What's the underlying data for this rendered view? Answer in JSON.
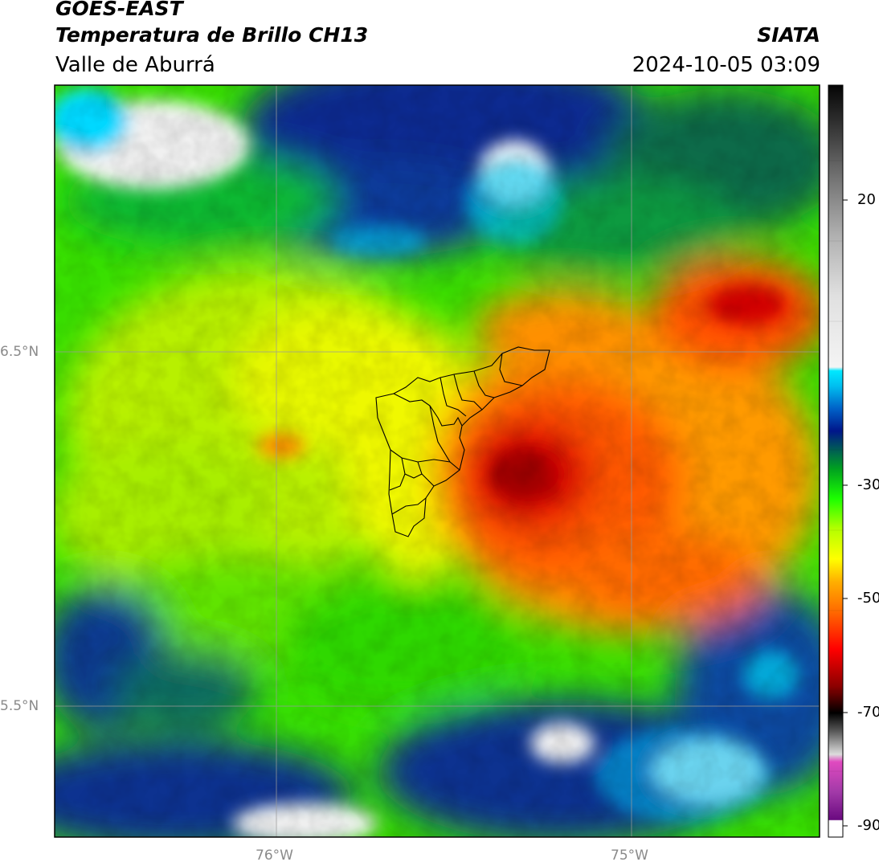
{
  "header": {
    "satellite": "GOES-EAST",
    "product": "Temperatura de Brillo CH13",
    "region": "Valle de Aburrá",
    "institution": "SIATA",
    "datetime": "2024-10-05 03:09"
  },
  "axes": {
    "lat_labels": [
      "6.5°N",
      "5.5°N"
    ],
    "lon_labels": [
      "76°W",
      "75°W"
    ],
    "lat_values": [
      6.5,
      5.5
    ],
    "lon_values": [
      -76,
      -75
    ]
  },
  "colorbar": {
    "tick_labels": [
      "20",
      "-30",
      "-50",
      "-70",
      "-90"
    ],
    "tick_values": [
      20,
      -30,
      -50,
      -70,
      -90
    ],
    "range": [
      -92,
      35
    ],
    "unit": ""
  },
  "colors": {
    "frame": "#000000",
    "grid": "#9a9a9a",
    "boundary": "#000000"
  }
}
